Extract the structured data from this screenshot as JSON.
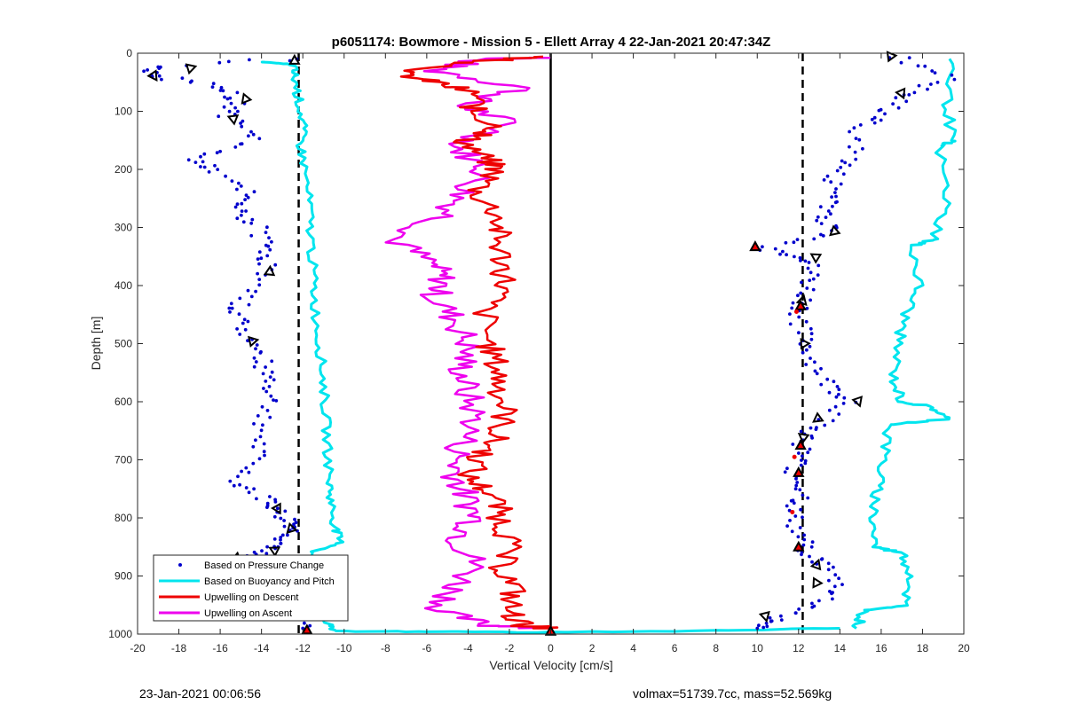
{
  "chart_data": {
    "type": "scatter",
    "title": "p6051174: Bowmore - Mission 5 - Ellett Array 4 22-Jan-2021 20:47:34Z",
    "xlabel": "Vertical Velocity [cm/s]",
    "ylabel": "Depth [m]",
    "xlim": [
      -20,
      20
    ],
    "ylim": [
      0,
      1000
    ],
    "y_reversed": true,
    "grid": false,
    "legend_position": "bottom-left",
    "x_ticks": [
      -20,
      -18,
      -16,
      -14,
      -12,
      -10,
      -8,
      -6,
      -4,
      -2,
      0,
      2,
      4,
      6,
      8,
      10,
      12,
      14,
      16,
      18,
      20
    ],
    "x_tick_labels": [
      "-20",
      "-18",
      "-16",
      "-14",
      "-12",
      "-10",
      "-8",
      "-6",
      "-4",
      "-2",
      "0",
      "2",
      "4",
      "6",
      "8",
      "10",
      "12",
      "14",
      "16",
      "18",
      "20"
    ],
    "y_ticks": [
      0,
      100,
      200,
      300,
      400,
      500,
      600,
      700,
      800,
      900,
      1000
    ],
    "y_tick_labels": [
      "0",
      "100",
      "200",
      "300",
      "400",
      "500",
      "600",
      "700",
      "800",
      "900",
      "1000"
    ],
    "reference_lines": {
      "zero_line_x": 0,
      "dashed_lines_x": [
        -12.2,
        12.2
      ]
    },
    "series": [
      {
        "name": "Based on Pressure Change",
        "style": "dots",
        "color": "#0000cc",
        "descent": [
          [
            -12,
            10
          ],
          [
            -19.5,
            25
          ],
          [
            -18.8,
            40
          ],
          [
            -16,
            60
          ],
          [
            -15.2,
            85
          ],
          [
            -15.6,
            110
          ],
          [
            -14.2,
            150
          ],
          [
            -17.2,
            180
          ],
          [
            -16.4,
            200
          ],
          [
            -14.8,
            240
          ],
          [
            -15.2,
            270
          ],
          [
            -14.2,
            300
          ],
          [
            -13.6,
            340
          ],
          [
            -13.8,
            370
          ],
          [
            -14.9,
            420
          ],
          [
            -15.2,
            450
          ],
          [
            -14.6,
            490
          ],
          [
            -14,
            530
          ],
          [
            -13.5,
            560
          ],
          [
            -13.6,
            600
          ],
          [
            -14,
            650
          ],
          [
            -14.4,
            700
          ],
          [
            -15.2,
            740
          ],
          [
            -13.6,
            770
          ],
          [
            -13.2,
            790
          ],
          [
            -12.4,
            810
          ],
          [
            -12.6,
            830
          ],
          [
            -13.4,
            850
          ],
          [
            -14.8,
            865
          ],
          [
            -13,
            900
          ],
          [
            -12.3,
            950
          ],
          [
            -12,
            990
          ]
        ],
        "ascent": [
          [
            16.5,
            5
          ],
          [
            19.4,
            40
          ],
          [
            17.2,
            70
          ],
          [
            16.2,
            100
          ],
          [
            15,
            130
          ],
          [
            14.6,
            180
          ],
          [
            13.6,
            210
          ],
          [
            13.8,
            250
          ],
          [
            13.3,
            280
          ],
          [
            13.5,
            310
          ],
          [
            10.2,
            335
          ],
          [
            12.4,
            350
          ],
          [
            12.6,
            380
          ],
          [
            12.3,
            420
          ],
          [
            12,
            450
          ],
          [
            12.2,
            490
          ],
          [
            12.7,
            530
          ],
          [
            13.4,
            570
          ],
          [
            14.6,
            600
          ],
          [
            13,
            640
          ],
          [
            12.3,
            660
          ],
          [
            12.1,
            690
          ],
          [
            11.8,
            720
          ],
          [
            12.3,
            760
          ],
          [
            11.6,
            790
          ],
          [
            12,
            830
          ],
          [
            12.5,
            860
          ],
          [
            13.2,
            880
          ],
          [
            14,
            920
          ],
          [
            12.8,
            950
          ],
          [
            10.8,
            975
          ],
          [
            10,
            990
          ]
        ]
      },
      {
        "name": "Based on Buoyancy and Pitch",
        "style": "line",
        "color": "#00e5ee",
        "descent": [
          [
            -14,
            15
          ],
          [
            -12.5,
            20
          ],
          [
            -12.4,
            40
          ],
          [
            -12.2,
            80
          ],
          [
            -12,
            120
          ],
          [
            -12.1,
            160
          ],
          [
            -11.9,
            200
          ],
          [
            -11.7,
            260
          ],
          [
            -11.6,
            320
          ],
          [
            -11.5,
            380
          ],
          [
            -11.4,
            440
          ],
          [
            -11.2,
            500
          ],
          [
            -11,
            560
          ],
          [
            -10.9,
            620
          ],
          [
            -10.8,
            680
          ],
          [
            -10.7,
            740
          ],
          [
            -10.6,
            780
          ],
          [
            -10.4,
            820
          ],
          [
            -10.2,
            845
          ],
          [
            -11.6,
            860
          ],
          [
            -11.8,
            900
          ],
          [
            -11.4,
            940
          ],
          [
            -10.9,
            980
          ],
          [
            -10.4,
            995
          ],
          [
            -6,
            996
          ],
          [
            0,
            997
          ],
          [
            8,
            994
          ],
          [
            14,
            990
          ]
        ],
        "ascent": [
          [
            19.5,
            10
          ],
          [
            19.2,
            80
          ],
          [
            19.4,
            150
          ],
          [
            18.8,
            160
          ],
          [
            19.2,
            250
          ],
          [
            18.6,
            320
          ],
          [
            17.6,
            330
          ],
          [
            17.8,
            400
          ],
          [
            17.2,
            450
          ],
          [
            16.8,
            500
          ],
          [
            16.6,
            560
          ],
          [
            17,
            600
          ],
          [
            18.5,
            610
          ],
          [
            19.2,
            630
          ],
          [
            16.4,
            640
          ],
          [
            16.1,
            700
          ],
          [
            15.8,
            750
          ],
          [
            15.6,
            800
          ],
          [
            15.7,
            850
          ],
          [
            17,
            860
          ],
          [
            17.5,
            900
          ],
          [
            17.1,
            950
          ],
          [
            15.2,
            960
          ],
          [
            14.8,
            990
          ]
        ]
      },
      {
        "name": "Upwelling on Descent",
        "style": "line",
        "color": "#ee0000",
        "points": [
          [
            0,
            5
          ],
          [
            -3.5,
            15
          ],
          [
            -7.4,
            35
          ],
          [
            -5.6,
            50
          ],
          [
            -3.6,
            70
          ],
          [
            -3.8,
            100
          ],
          [
            -2.5,
            130
          ],
          [
            -4.2,
            150
          ],
          [
            -3.2,
            180
          ],
          [
            -2.6,
            200
          ],
          [
            -3.6,
            240
          ],
          [
            -2.5,
            280
          ],
          [
            -2.6,
            320
          ],
          [
            -2.3,
            360
          ],
          [
            -2.2,
            400
          ],
          [
            -3.2,
            440
          ],
          [
            -3,
            500
          ],
          [
            -2.6,
            540
          ],
          [
            -2.4,
            580
          ],
          [
            -2.2,
            620
          ],
          [
            -2.6,
            660
          ],
          [
            -3.3,
            690
          ],
          [
            -4,
            730
          ],
          [
            -2.8,
            760
          ],
          [
            -2.4,
            800
          ],
          [
            -2,
            840
          ],
          [
            -2.4,
            880
          ],
          [
            -1.8,
            920
          ],
          [
            -2,
            960
          ],
          [
            -1.4,
            985
          ],
          [
            0,
            990
          ]
        ]
      },
      {
        "name": "Upwelling on Ascent",
        "style": "line",
        "color": "#ee00ee",
        "points": [
          [
            0,
            8
          ],
          [
            -3.4,
            10
          ],
          [
            -5.6,
            30
          ],
          [
            -1.2,
            60
          ],
          [
            -4.4,
            90
          ],
          [
            -1.8,
            120
          ],
          [
            -4.6,
            160
          ],
          [
            -3.1,
            200
          ],
          [
            -4.2,
            240
          ],
          [
            -5.1,
            280
          ],
          [
            -7.6,
            320
          ],
          [
            -5.8,
            360
          ],
          [
            -5.2,
            390
          ],
          [
            -5.6,
            420
          ],
          [
            -4.6,
            460
          ],
          [
            -4,
            500
          ],
          [
            -4.3,
            540
          ],
          [
            -4.1,
            580
          ],
          [
            -3.6,
            630
          ],
          [
            -4.4,
            680
          ],
          [
            -4.6,
            720
          ],
          [
            -4.2,
            760
          ],
          [
            -3.6,
            800
          ],
          [
            -4.4,
            840
          ],
          [
            -3.6,
            880
          ],
          [
            -4.6,
            920
          ],
          [
            -5.4,
            960
          ],
          [
            -3,
            985
          ],
          [
            0,
            990
          ]
        ]
      }
    ],
    "markers": {
      "open_triangles": [
        [
          -12.4,
          12
        ],
        [
          -17.4,
          25
        ],
        [
          -19.2,
          40
        ],
        [
          -14.8,
          80
        ],
        [
          -15.4,
          112
        ],
        [
          -13.6,
          375
        ],
        [
          -14.4,
          495
        ],
        [
          -13.2,
          785
        ],
        [
          -12.6,
          820
        ],
        [
          -13.4,
          855
        ],
        [
          -15.2,
          868
        ],
        [
          16.5,
          5
        ],
        [
          17,
          70
        ],
        [
          13.7,
          308
        ],
        [
          12.8,
          350
        ],
        [
          12.2,
          425
        ],
        [
          12.3,
          500
        ],
        [
          14.9,
          600
        ],
        [
          12.9,
          630
        ],
        [
          12.2,
          660
        ],
        [
          12.9,
          880
        ],
        [
          12.9,
          912
        ],
        [
          10.4,
          970
        ]
      ],
      "red_filled_triangles": [
        [
          9.9,
          333
        ],
        [
          12.1,
          435
        ],
        [
          12.1,
          675
        ],
        [
          12,
          722
        ],
        [
          12,
          850
        ],
        [
          -11.8,
          993
        ],
        [
          0,
          995
        ]
      ],
      "red_dots": [
        [
          11.9,
          445
        ],
        [
          11.8,
          695
        ],
        [
          11.7,
          790
        ]
      ]
    }
  },
  "legend": [
    {
      "label": "Based on Pressure Change",
      "swatch": "dot",
      "color": "#0000cc"
    },
    {
      "label": "Based on Buoyancy and Pitch",
      "swatch": "line",
      "color": "#00e5ee"
    },
    {
      "label": "Upwelling on Descent",
      "swatch": "line",
      "color": "#ee0000"
    },
    {
      "label": "Upwelling on Ascent",
      "swatch": "line",
      "color": "#ee00ee"
    }
  ],
  "footer": {
    "left": "23-Jan-2021 00:06:56",
    "right": "volmax=51739.7cc, mass=52.569kg"
  }
}
